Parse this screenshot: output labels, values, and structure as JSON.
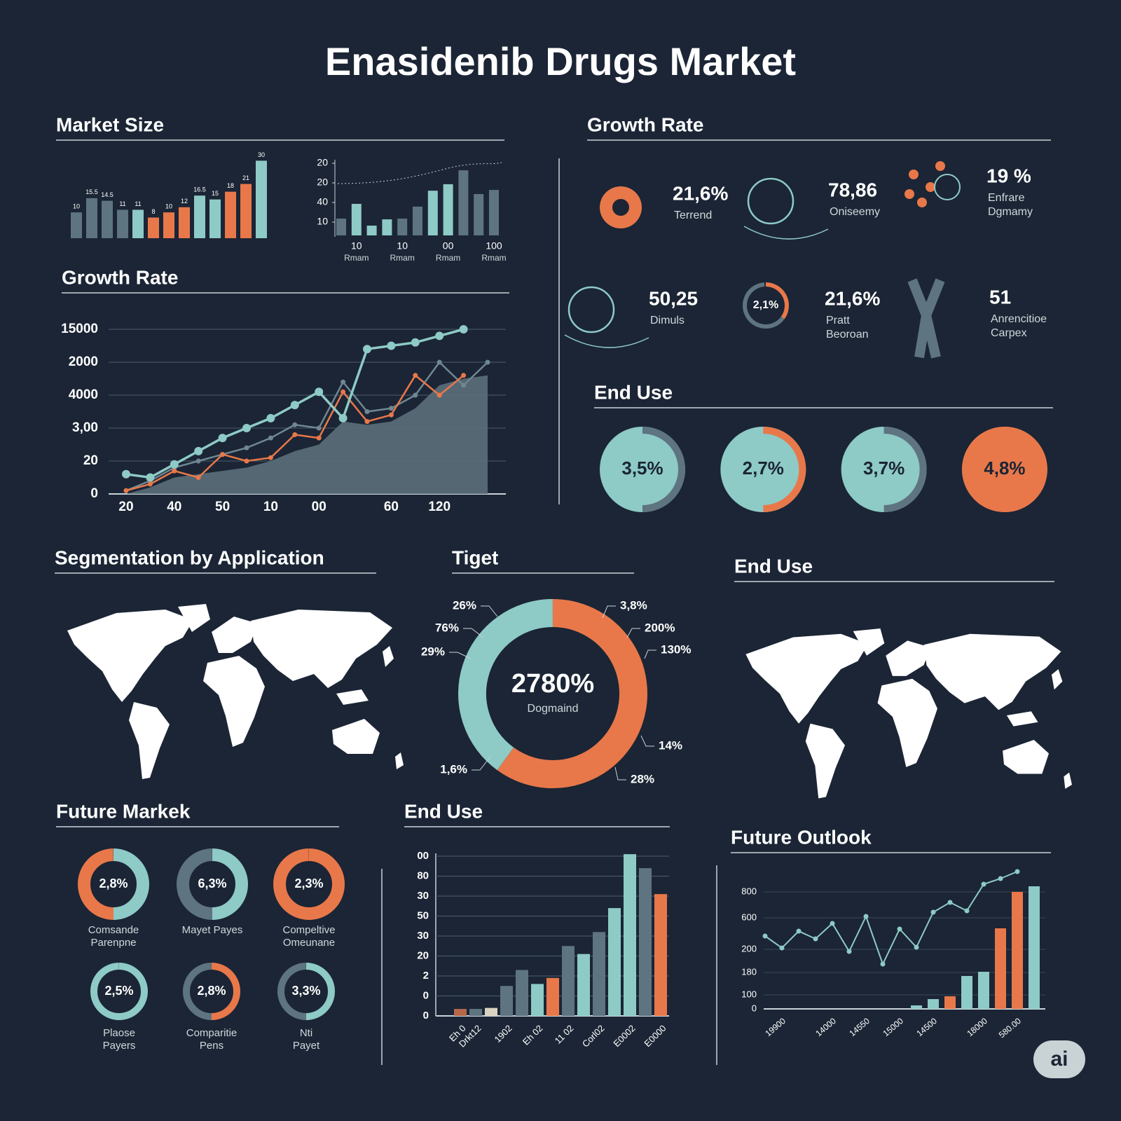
{
  "title": "Enasidenib Drugs Market",
  "chart_data": [
    {
      "type": "bar",
      "title": "Market Size",
      "values": [
        10,
        15.5,
        14.5,
        11,
        11,
        8,
        10,
        12,
        16.5,
        15,
        18,
        21,
        30
      ],
      "colors": [
        "#5e7480",
        "#5e7480",
        "#5e7480",
        "#5e7480",
        "#8ecac6",
        "#e8784a",
        "#e8784a",
        "#e8784a",
        "#8ecac6",
        "#8ecac6",
        "#e8784a",
        "#e8784a",
        "#8ecac6"
      ],
      "ylim": [
        0,
        32
      ]
    },
    {
      "type": "bar",
      "categories": [
        null,
        "10",
        null,
        null,
        "10",
        null,
        null,
        "00",
        null,
        null,
        "100"
      ],
      "x_sublabels": [
        null,
        "Rmam",
        null,
        null,
        "Rmam",
        null,
        null,
        "Rmam",
        null,
        null,
        "Rmam"
      ],
      "values": [
        11.8,
        19.3,
        8.2,
        11.4,
        11.8,
        17.9,
        26,
        29.3,
        36.4,
        24.3,
        26.4
      ],
      "colors": [
        "#5e7480",
        "#8ecac6",
        "#8ecac6",
        "#8ecac6",
        "#5e7480",
        "#5e7480",
        "#8ecac6",
        "#8ecac6",
        "#5e7480",
        "#5e7480",
        "#5e7480"
      ],
      "ylim": [
        0,
        42
      ],
      "yticks": [
        10,
        {
          "value": 20,
          "label": "40"
        },
        {
          "value": 30,
          "label": "20"
        },
        {
          "value": 40,
          "label": "20"
        }
      ]
    },
    {
      "type": "line",
      "title": "Growth Rate",
      "categories": [
        "20",
        null,
        "40",
        null,
        "50",
        null,
        "10",
        null,
        "00",
        null,
        null,
        "60",
        null,
        "120",
        null,
        null
      ],
      "series": [
        {
          "color": "#5b6f7a",
          "area": true,
          "values": [
            0,
            0.2,
            0.5,
            0.6,
            0.7,
            0.8,
            1.0,
            1.3,
            1.5,
            2.2,
            2.1,
            2.2,
            2.6,
            3.3,
            3.5,
            3.6
          ]
        },
        {
          "color": "#6f8792",
          "values": [
            0.1,
            0.4,
            0.8,
            1.0,
            1.2,
            1.4,
            1.7,
            2.1,
            2.0,
            3.4,
            2.5,
            2.6,
            3.0,
            4.0,
            3.3,
            4.0
          ]
        },
        {
          "color": "#e8784a",
          "values": [
            0.1,
            0.3,
            0.7,
            0.5,
            1.2,
            1.0,
            1.1,
            1.8,
            1.7,
            3.1,
            2.2,
            2.4,
            3.6,
            3.0,
            3.6,
            null
          ]
        },
        {
          "color": "#8ecac6",
          "values": [
            0.6,
            0.5,
            0.9,
            1.3,
            1.7,
            2.0,
            2.3,
            2.7,
            3.1,
            2.3,
            4.4,
            4.5,
            4.6,
            4.8,
            5.0,
            null
          ]
        }
      ],
      "ylim": [
        0,
        5
      ],
      "yticks": [
        0,
        {
          "value": 1,
          "label": "20"
        },
        {
          "value": 2,
          "label": "3,00"
        },
        {
          "value": 3,
          "label": "4000"
        },
        {
          "value": 4,
          "label": "2000"
        },
        {
          "value": 5,
          "label": "15000"
        }
      ],
      "grid": true
    },
    {
      "type": "donut",
      "title": "Tiget",
      "values": [
        60,
        40
      ],
      "colors": [
        "#e8784a",
        "#8ecac6"
      ],
      "center_value": "2780%",
      "center_label": "Dogmaind",
      "callouts": [
        "26%",
        "76%",
        "29%",
        "3,8%",
        "200%",
        "130%",
        "14%",
        "28%",
        "1,6%"
      ]
    },
    {
      "type": "bar",
      "title": "End Use",
      "categories": [
        "Eh 0",
        "Drkt12",
        null,
        "1902",
        null,
        "Eh 02",
        null,
        "11 02",
        null,
        "Corl02",
        null,
        "E0002",
        null,
        "E0000"
      ],
      "values": [
        0.35,
        0.35,
        0.4,
        1.5,
        2.3,
        1.6,
        1.9,
        3.5,
        3.1,
        4.2,
        5.4,
        8.1,
        7.4,
        6.1
      ],
      "colors": [
        "#b7674a",
        "#5e7480",
        "#d9d2c0",
        "#5e7480",
        "#5e7480",
        "#8ecac6",
        "#e8784a",
        "#5e7480",
        "#8ecac6",
        "#5e7480",
        "#8ecac6",
        "#8ecac6",
        "#5e7480",
        "#e8784a"
      ],
      "ylim": [
        0,
        8
      ],
      "yticks": [
        0,
        {
          "value": 1,
          "label": "0"
        },
        2,
        {
          "value": 3,
          "label": "20"
        },
        {
          "value": 4,
          "label": "30"
        },
        {
          "value": 5,
          "label": "50"
        },
        {
          "value": 6,
          "label": "30"
        },
        {
          "value": 7,
          "label": "80"
        },
        {
          "value": 8,
          "label": "00"
        }
      ],
      "grid": true
    },
    {
      "type": "combo",
      "title": "Future Outlook",
      "categories": [
        null,
        "19900",
        null,
        null,
        "14000",
        null,
        "14550",
        null,
        "15000",
        null,
        "14500",
        null,
        null,
        "18000",
        null,
        "580.00",
        null
      ],
      "series": [
        {
          "kind": "bar",
          "color": "#8ecac6",
          "values": [
            null,
            null,
            null,
            null,
            null,
            null,
            null,
            null,
            null,
            0.25,
            0.7,
            null,
            2.35,
            2.65,
            null,
            null,
            8.75
          ]
        },
        {
          "kind": "bar",
          "color": "#e8784a",
          "values": [
            null,
            null,
            null,
            null,
            null,
            null,
            null,
            null,
            null,
            null,
            null,
            0.9,
            null,
            null,
            5.75,
            8.35,
            null
          ]
        },
        {
          "kind": "line",
          "color": "#8ecac6",
          "values": [
            5.2,
            4.35,
            5.55,
            5.0,
            6.1,
            4.1,
            6.6,
            3.2,
            5.7,
            4.4,
            6.9,
            7.6,
            7.0,
            8.9,
            9.3,
            9.8,
            null
          ]
        }
      ],
      "ylim": [
        0,
        10
      ],
      "yticks": [
        0,
        {
          "value": 1,
          "label": "100"
        },
        {
          "value": 2.6,
          "label": "180"
        },
        {
          "value": 4.25,
          "label": "200"
        },
        {
          "value": 6.5,
          "label": "600"
        },
        {
          "value": 8.35,
          "label": "800"
        }
      ],
      "grid": true
    }
  ],
  "growth_stats": {
    "heading": "Growth Rate",
    "items": [
      {
        "value": "21,6%",
        "label": [
          "Terrend"
        ],
        "color": "#e8784a"
      },
      {
        "value": "78,86",
        "label": [
          "Oniseemy"
        ],
        "color": "#8ecac6"
      },
      {
        "value": "19 %",
        "label": [
          "Enfrare",
          "Dgmamy"
        ],
        "color": "#e8784a"
      },
      {
        "value": "50,25",
        "label": [
          "Dimuls"
        ],
        "color": "#8ecac6"
      },
      {
        "value": "21,6%",
        "label": [
          "Pratt",
          "Beoroan"
        ],
        "color": "#e8784a",
        "badge": "2,1%"
      },
      {
        "value": "51",
        "label": [
          "Anrencitioe",
          "Carpex"
        ],
        "color": "#5e7480"
      }
    ]
  },
  "end_use_rings": {
    "heading": "End Use",
    "items": [
      {
        "value": "3,5%",
        "color": "#8ecac6",
        "ring": "#5e7480"
      },
      {
        "value": "2,7%",
        "color": "#8ecac6",
        "ring": "#e8784a"
      },
      {
        "value": "3,7%",
        "color": "#8ecac6",
        "ring": "#5e7480"
      },
      {
        "value": "4,8%",
        "color": "#e8784a",
        "ring": "#e8784a"
      }
    ]
  },
  "segmentation": {
    "heading": "Segmentation by Application"
  },
  "end_use_map": {
    "heading": "End Use"
  },
  "future_market": {
    "heading": "Future Markek",
    "items": [
      {
        "value": "2,8%",
        "label": [
          "Comsande",
          "Parenpne"
        ],
        "colors": [
          "#e8784a",
          "#8ecac6"
        ]
      },
      {
        "value": "6,3%",
        "label": [
          "Mayet Payes"
        ],
        "colors": [
          "#5e7480",
          "#8ecac6"
        ]
      },
      {
        "value": "2,3%",
        "label": [
          "Compeltive",
          "Omeunane"
        ],
        "colors": [
          "#e8784a",
          "#e8784a"
        ]
      },
      {
        "value": "2,5%",
        "label": [
          "Plaose",
          "Payers"
        ],
        "colors": [
          "#8ecac6",
          "#8ecac6"
        ]
      },
      {
        "value": "2,8%",
        "label": [
          "Comparitie",
          "Pens"
        ],
        "colors": [
          "#5e7480",
          "#e8784a"
        ]
      },
      {
        "value": "3,3%",
        "label": [
          "Nti",
          "Payet"
        ],
        "colors": [
          "#5e7480",
          "#8ecac6"
        ]
      }
    ]
  },
  "badge": "ai"
}
